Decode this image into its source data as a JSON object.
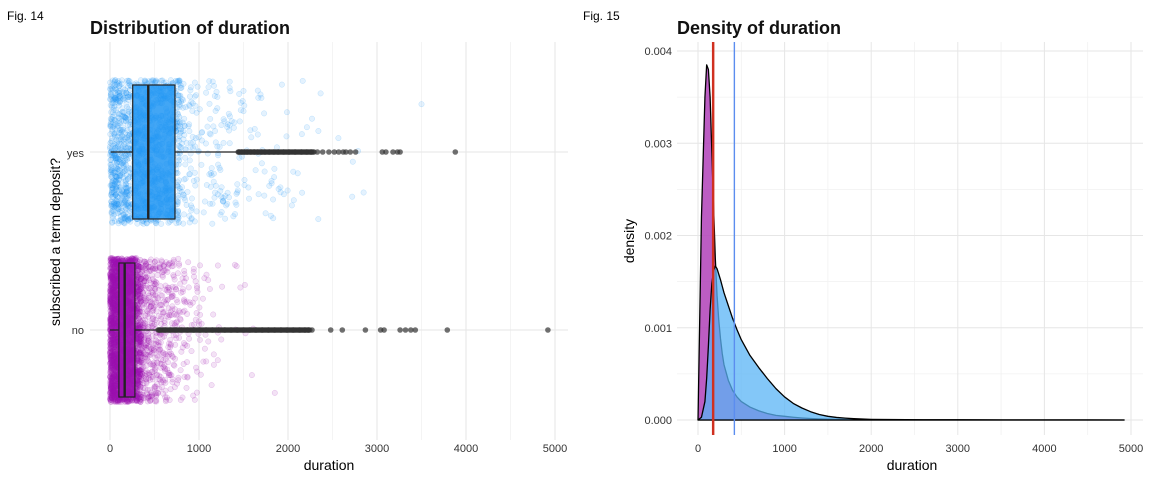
{
  "figures": [
    {
      "label": "Fig. 14"
    },
    {
      "label": "Fig. 15"
    }
  ],
  "colors": {
    "yes": "#2196F3",
    "no": "#9C0FB0",
    "outlier": "#333333",
    "mean_line": "#5B8DEF",
    "median_line": "#D03020",
    "yes_fill": "#5AB4F5",
    "no_fill": "#B041B8"
  },
  "chart_data": [
    {
      "type": "scatter",
      "subtype": "jitter-boxplot",
      "title": "Distribution of duration",
      "xlabel": "duration",
      "ylabel": "subscribed a term deposit?",
      "xlim": [
        0,
        5000
      ],
      "x_ticks": [
        0,
        1000,
        2000,
        3000,
        4000,
        5000
      ],
      "categories": [
        "yes",
        "no"
      ],
      "boxes": [
        {
          "name": "yes",
          "whisker_low": 8,
          "q1": 255,
          "median": 430,
          "q3": 730,
          "whisker_high": 1440
        },
        {
          "name": "no",
          "whisker_low": 0,
          "q1": 100,
          "median": 165,
          "q3": 280,
          "whisker_high": 540
        }
      ],
      "outliers": [
        {
          "name": "yes",
          "x": [
            1450,
            1480,
            1510,
            1540,
            1580,
            1620,
            1660,
            1700,
            1740,
            1790,
            1840,
            1890,
            1950,
            2010,
            2080,
            2150,
            2210,
            2260,
            2330,
            2390,
            2460,
            2520,
            2570,
            2620,
            2650,
            2700,
            2760,
            3060,
            3100,
            3180,
            3230,
            3260,
            3880
          ]
        },
        {
          "name": "no",
          "x": [
            560,
            620,
            680,
            740,
            800,
            870,
            940,
            1010,
            1080,
            1150,
            1220,
            1290,
            1360,
            1430,
            1500,
            1570,
            1640,
            1710,
            1780,
            1850,
            1920,
            1990,
            2060,
            2130,
            2190,
            2230,
            2270,
            2480,
            2610,
            2870,
            3040,
            3080,
            3260,
            3320,
            3380,
            3430,
            3790,
            4920
          ]
        }
      ],
      "grid": true
    },
    {
      "type": "area",
      "title": "Density of duration",
      "xlabel": "duration",
      "ylabel": "density",
      "xlim": [
        0,
        5000
      ],
      "ylim": [
        0,
        0.004
      ],
      "x_ticks": [
        0,
        1000,
        2000,
        3000,
        4000,
        5000
      ],
      "y_ticks": [
        "0.000",
        "0.001",
        "0.002",
        "0.003",
        "0.004"
      ],
      "x": [
        0,
        40,
        80,
        100,
        120,
        140,
        160,
        180,
        200,
        220,
        240,
        260,
        280,
        300,
        350,
        400,
        450,
        500,
        600,
        700,
        800,
        900,
        1000,
        1100,
        1200,
        1300,
        1400,
        1500,
        1600,
        1700,
        1800,
        1900,
        2000,
        2200,
        2400,
        2600,
        2800,
        3000,
        3500,
        4000,
        4500,
        4920
      ],
      "series": [
        {
          "name": "no",
          "values": [
            0.0,
            0.0022,
            0.0035,
            0.00385,
            0.0038,
            0.0035,
            0.0029,
            0.0023,
            0.00175,
            0.00135,
            0.00108,
            0.00088,
            0.00072,
            0.0006,
            0.00043,
            0.00032,
            0.00025,
            0.0002,
            0.00014,
            0.0001,
            7e-05,
            5e-05,
            4e-05,
            3e-05,
            2.2e-05,
            1.6e-05,
            1.2e-05,
            9e-06,
            7e-06,
            5e-06,
            4e-06,
            3e-06,
            2e-06,
            1.5e-06,
            1e-06,
            8e-07,
            6e-07,
            5e-07,
            3e-07,
            2e-07,
            1e-07,
            0.0
          ]
        },
        {
          "name": "yes",
          "values": [
            0.0,
            3e-05,
            0.0002,
            0.00045,
            0.0008,
            0.0012,
            0.00148,
            0.00162,
            0.00167,
            0.00164,
            0.00158,
            0.00152,
            0.00145,
            0.00138,
            0.00124,
            0.0011,
            0.00098,
            0.00087,
            0.0007,
            0.00057,
            0.00045,
            0.00034,
            0.00025,
            0.00018,
            0.00013,
            9e-05,
            6e-05,
            4e-05,
            2.8e-05,
            2e-05,
            1.4e-05,
            1e-05,
            7e-06,
            5e-06,
            4e-06,
            3e-06,
            3e-06,
            2e-06,
            1e-06,
            8e-07,
            5e-07,
            0.0
          ]
        }
      ],
      "vlines": [
        {
          "name": "mean",
          "x": 420
        },
        {
          "name": "median",
          "x": 170
        },
        {
          "name": "median-2",
          "x": 180
        }
      ],
      "grid": true
    }
  ]
}
